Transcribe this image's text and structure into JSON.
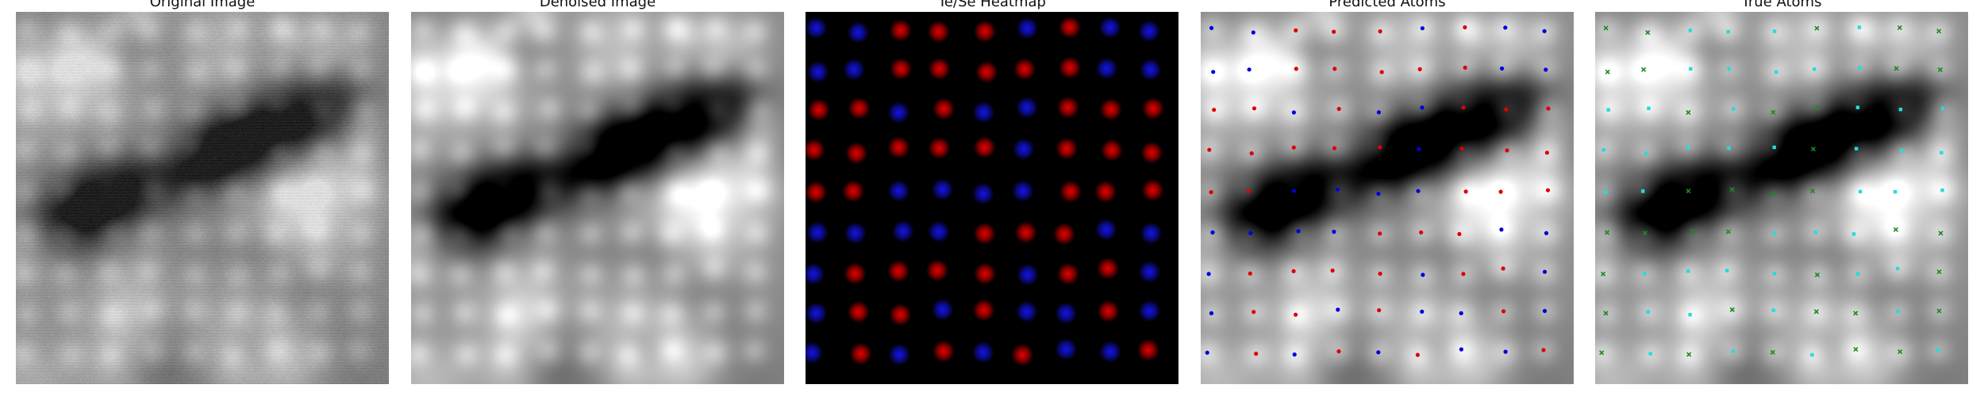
{
  "figure": {
    "panels": [
      {
        "id": "original",
        "title": "Original Image",
        "kind": "stem-noisy"
      },
      {
        "id": "denoised",
        "title": "Denoised Image",
        "kind": "stem-smooth"
      },
      {
        "id": "heatmap",
        "title": "Te/Se Heatmap",
        "kind": "heatmap"
      },
      {
        "id": "predicted",
        "title": "Predicted Atoms",
        "kind": "stem-with-markers"
      },
      {
        "id": "true",
        "title": "True Atoms",
        "kind": "stem-with-markers"
      }
    ]
  },
  "colors": {
    "te": "#e00000",
    "se": "#0000dd",
    "true_te": "#22dddd",
    "true_se": "#1a8a1a"
  },
  "atom_grid": {
    "cols": 9,
    "rows": 9,
    "species_rows": [
      "SSTTTSTSS",
      "SSTTTTTSS",
      "TTSTSSTTT",
      "TTTTTSTTT",
      "TTSSSSTTT",
      "SSSSTTTSS",
      "STTTTSTTS",
      "STTSTSSTS",
      "STSTSTSST"
    ]
  }
}
